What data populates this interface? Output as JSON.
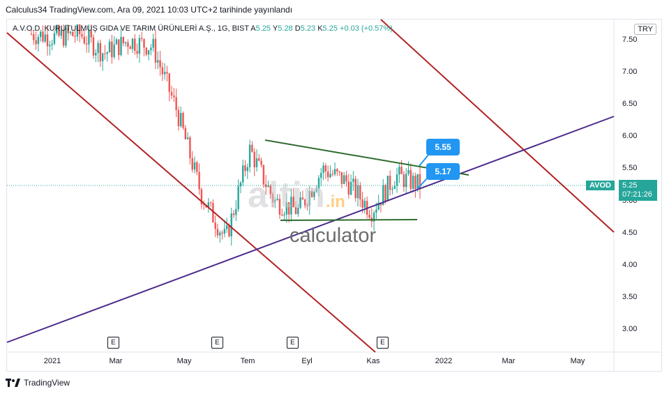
{
  "published": "Calculus34 TradingView.com, Ara 09, 2021 10:03 UTC+2 tarihinde yayınlandı",
  "legend": {
    "title": "A.V.O.D. KURUTULMUŞ GIDA VE TARIM ÜRÜNLERİ A.Ş., 1G, BIST",
    "open_label": "A",
    "open": "5.25",
    "high_label": "Y",
    "high": "5.28",
    "low_label": "D",
    "low": "5.23",
    "close_label": "K",
    "close": "5.25",
    "change": "+0.03 (+0.57%)"
  },
  "currency": "TRY",
  "symbol_tag": "AVOD",
  "last_price": "5.25",
  "countdown": "07:21:26",
  "callouts": {
    "upper": "5.55",
    "lower": "5.17"
  },
  "watermark": {
    "main": "altin",
    "suffix": ".in",
    "sub": "calculator"
  },
  "footer": "TradingView",
  "earnings_badge": "E",
  "colors": {
    "up": "#26a69a",
    "down": "#ef5350",
    "channel": "#b22222",
    "support": "#4b2a8c",
    "triangle": "#2e6b2e",
    "callout": "#2196f3"
  },
  "chart_data": {
    "type": "candlestick",
    "y_ticks": [
      "7.50",
      "7.00",
      "6.50",
      "6.00",
      "5.50",
      "5.00",
      "4.50",
      "4.00",
      "3.50",
      "3.00"
    ],
    "x_ticks": [
      "2021",
      "Mar",
      "May",
      "Tem",
      "Eyl",
      "Kas",
      "2022",
      "Mar",
      "May"
    ],
    "ylim": [
      2.7,
      7.75
    ],
    "earnings_months": [
      "Mar",
      "Tem",
      "Eyl",
      "Kas"
    ],
    "price_path": [
      {
        "t": "2020-12",
        "v": 7.6
      },
      {
        "t": "2021-01",
        "v": 7.55
      },
      {
        "t": "2021-02",
        "v": 7.6
      },
      {
        "t": "2021-03",
        "v": 7.3
      },
      {
        "t": "2021-04",
        "v": 7.5
      },
      {
        "t": "2021-05",
        "v": 7.4
      },
      {
        "t": "2021-06",
        "v": 6.4
      },
      {
        "t": "2021-07",
        "v": 5.1
      },
      {
        "t": "2021-07-15",
        "v": 4.4
      },
      {
        "t": "2021-07-25",
        "v": 5.8
      },
      {
        "t": "2021-08",
        "v": 5.0
      },
      {
        "t": "2021-09",
        "v": 4.85
      },
      {
        "t": "2021-10",
        "v": 5.5
      },
      {
        "t": "2021-10-15",
        "v": 5.3
      },
      {
        "t": "2021-11",
        "v": 4.85
      },
      {
        "t": "2021-11-20",
        "v": 5.4
      },
      {
        "t": "2021-12-09",
        "v": 5.25
      }
    ],
    "last_close": 5.25,
    "annotations": [
      {
        "label": "5.55",
        "value": 5.55
      },
      {
        "label": "5.17",
        "value": 5.17
      }
    ]
  }
}
